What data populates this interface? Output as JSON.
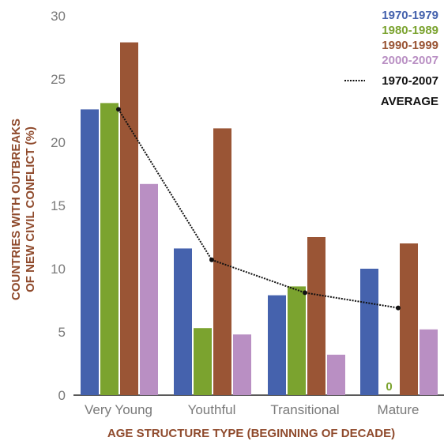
{
  "chart_data": {
    "type": "bar",
    "categories": [
      "Very Young",
      "Youthful",
      "Transitional",
      "Mature"
    ],
    "series": [
      {
        "name": "1970-1979",
        "color": "#4562ad",
        "values": [
          22.6,
          11.6,
          7.9,
          10.0
        ]
      },
      {
        "name": "1980-1989",
        "color": "#7ba32f",
        "values": [
          23.1,
          5.3,
          8.6,
          0
        ]
      },
      {
        "name": "1990-1999",
        "color": "#9a5535",
        "values": [
          27.9,
          21.1,
          12.5,
          12.0
        ]
      },
      {
        "name": "2000-2007",
        "color": "#b98fc3",
        "values": [
          16.7,
          4.8,
          3.2,
          5.2
        ]
      }
    ],
    "average": {
      "name_line1": "1970-2007",
      "name_line2": "AVERAGE",
      "values": [
        22.6,
        10.7,
        8.1,
        6.9
      ]
    },
    "xlabel": "AGE STRUCTURE TYPE (BEGINNING OF DECADE)",
    "ylabel_line1": "COUNTRIES WITH OUTBREAKS",
    "ylabel_line2": "OF NEW CIVIL CONFLICT (%)",
    "ylim": [
      0,
      30
    ],
    "yticks": [
      0,
      5,
      10,
      15,
      20,
      25,
      30
    ],
    "zero_label": "0",
    "grid": false,
    "legend_position": "top-right",
    "text_color": "#8f4a2c",
    "tick_color": "#7a7a7a"
  }
}
